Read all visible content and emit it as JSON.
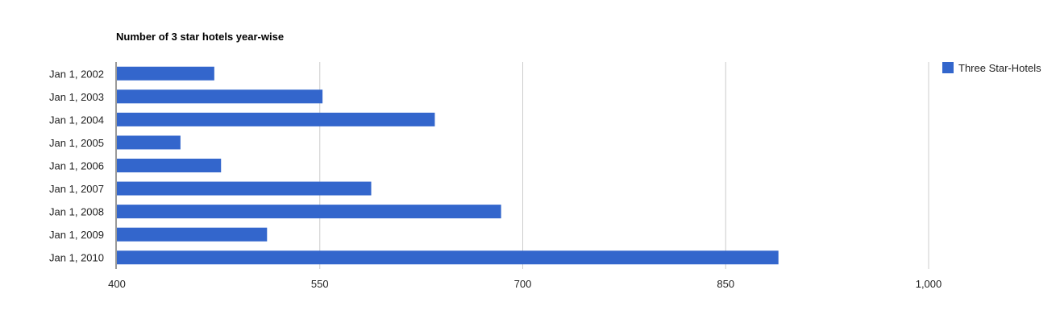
{
  "chart_data": {
    "type": "bar",
    "orientation": "horizontal",
    "title": "Number of 3 star hotels year-wise",
    "categories": [
      "Jan 1, 2002",
      "Jan 1, 2003",
      "Jan 1, 2004",
      "Jan 1, 2005",
      "Jan 1, 2006",
      "Jan 1, 2007",
      "Jan 1, 2008",
      "Jan 1, 2009",
      "Jan 1, 2010"
    ],
    "series": [
      {
        "name": "Three Star-Hotels",
        "color": "#3366cc",
        "values": [
          472,
          552,
          635,
          447,
          477,
          588,
          684,
          511,
          889
        ]
      }
    ],
    "xlim": [
      400,
      1000
    ],
    "xticks": [
      400,
      550,
      700,
      850,
      1000
    ],
    "xtick_labels": [
      "400",
      "550",
      "700",
      "850",
      "1,000"
    ],
    "grid": true,
    "legend_position": "right"
  }
}
